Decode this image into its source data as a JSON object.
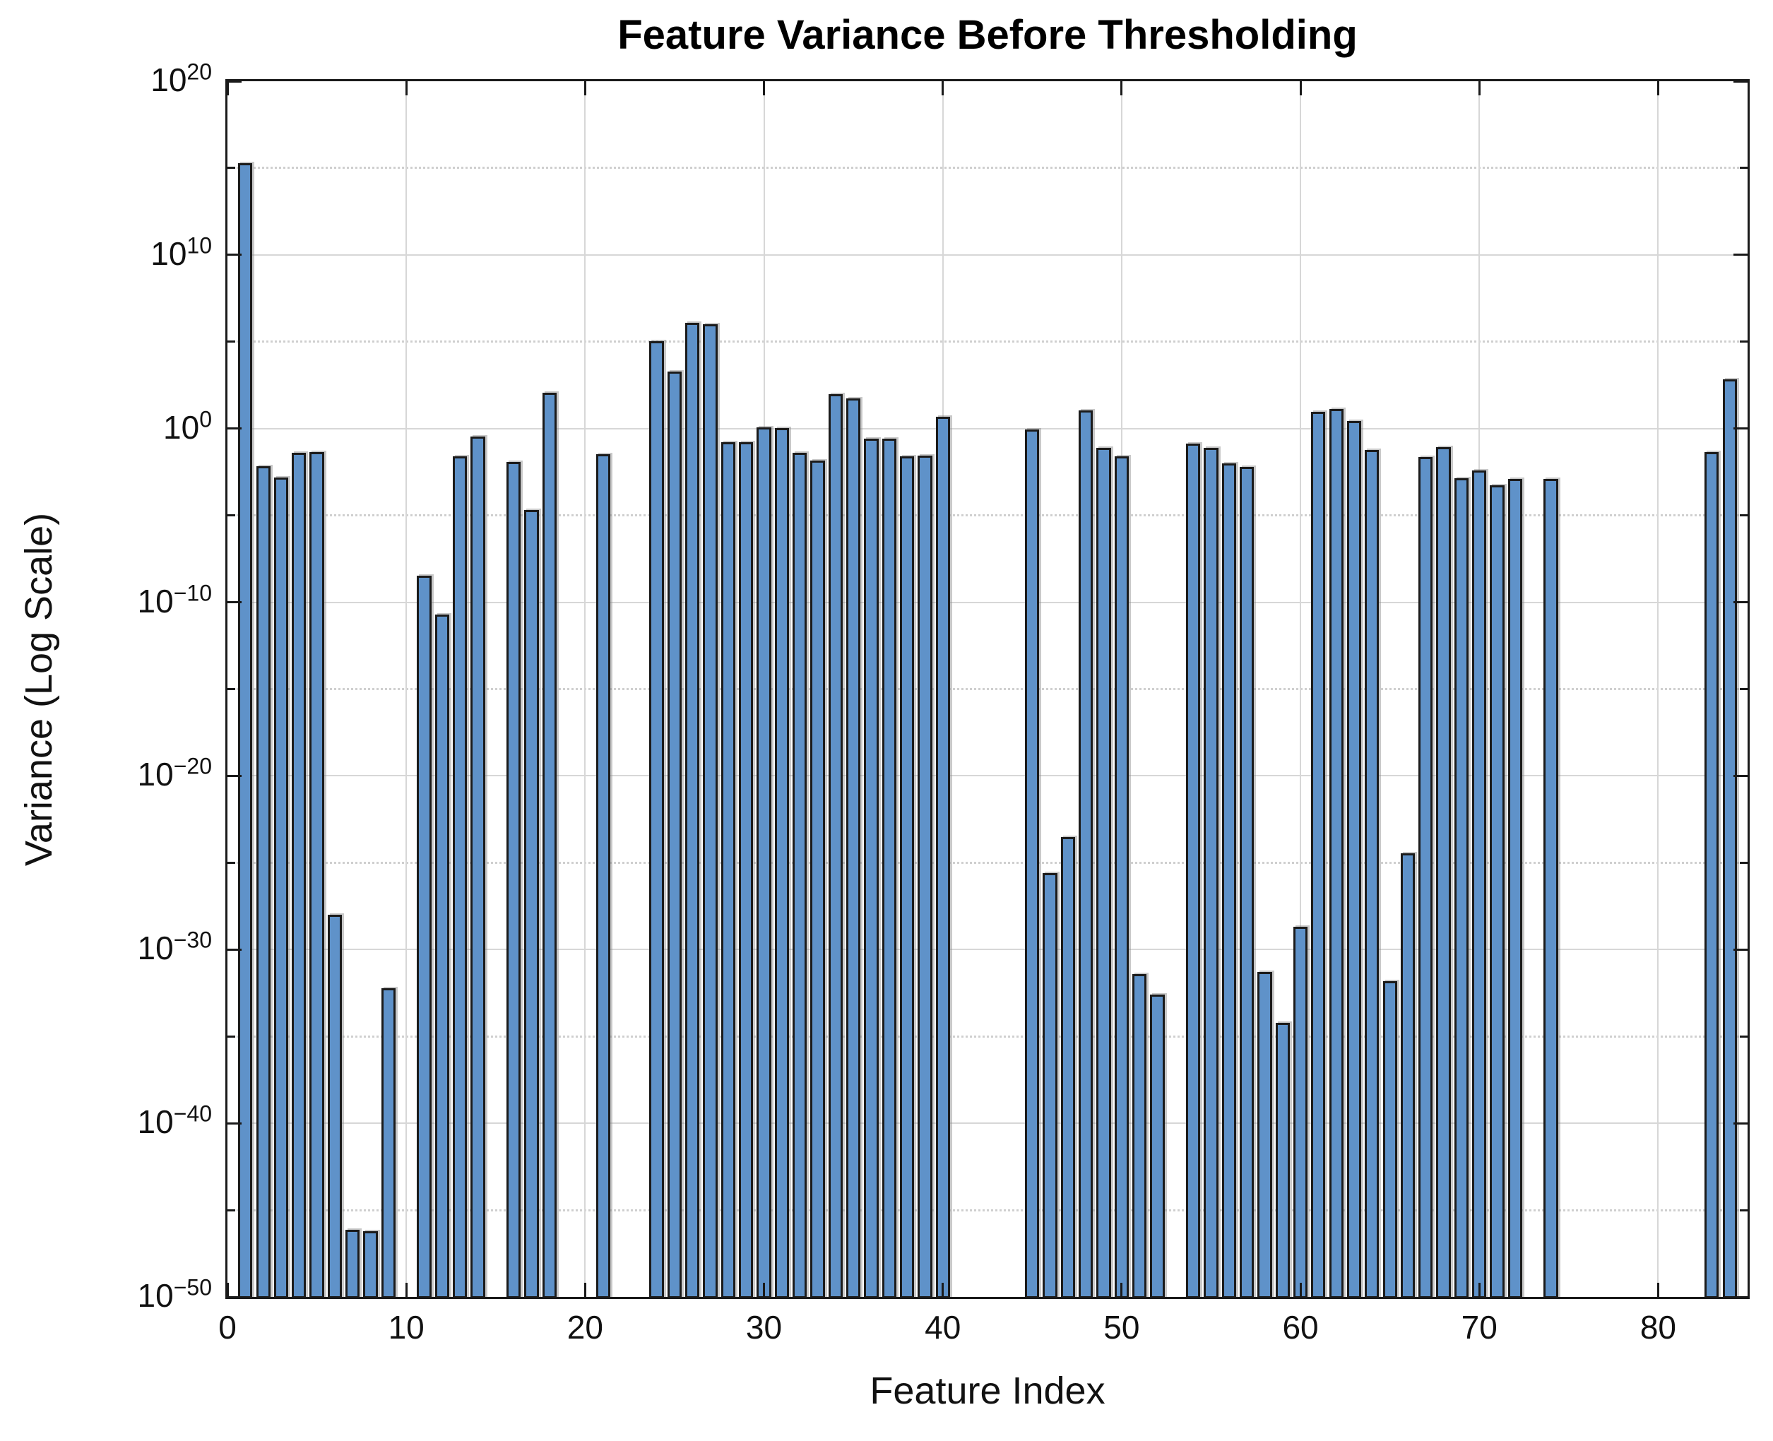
{
  "chart_data": {
    "type": "bar",
    "title": "Feature Variance Before Thresholding",
    "xlabel": "Feature Index",
    "ylabel": "Variance (Log Scale)",
    "x_start_index": 1,
    "n_features": 84,
    "xlim": [
      0,
      85
    ],
    "ylim_exponents": [
      -50,
      20
    ],
    "xticks": [
      0,
      10,
      20,
      30,
      40,
      50,
      60,
      70,
      80
    ],
    "ytick_exponents": [
      20,
      10,
      0,
      -10,
      -20,
      -30,
      -40,
      -50
    ],
    "ytick_minor_exponents": [
      15,
      5,
      -5,
      -15,
      -25,
      -35,
      -45
    ],
    "grid": {
      "major": "solid",
      "minor": "dotted",
      "vertical_at_xticks": true
    },
    "legend": null,
    "colors": {
      "bar_fill": "#5f92c9",
      "bar_edge": "#1b1b1b",
      "grid_major": "#d7d7d7",
      "grid_minor": "#cfcfcf",
      "spine": "#1a1a1a",
      "text": "#111111",
      "background": "#ffffff"
    },
    "values": [
      2000000000000000.0,
      0.007,
      0.0015,
      0.039,
      0.046,
      1e-28,
      7e-47,
      6e-47,
      6e-33,
      null,
      3.5e-09,
      2e-11,
      0.025,
      0.35,
      null,
      0.012,
      2e-05,
      120.0,
      null,
      null,
      0.035,
      null,
      null,
      110000.0,
      2000.0,
      1200000.0,
      1000000.0,
      0.17,
      0.16,
      1.15,
      1.05,
      0.04,
      0.015,
      100.0,
      54.0,
      0.27,
      0.27,
      0.025,
      0.028,
      4.6,
      null,
      null,
      null,
      null,
      0.85,
      2.5e-26,
      3e-24,
      11.0,
      0.08,
      0.026,
      4e-32,
      2.6e-33,
      null,
      0.13,
      0.08,
      0.01,
      0.006,
      5e-32,
      6e-35,
      2e-29,
      9,
      13.0,
      2.7,
      0.06,
      1.5e-32,
      3.4e-25,
      0.023,
      0.087,
      0.0014,
      0.004,
      0.00056,
      0.0013,
      null,
      0.0013,
      null,
      null,
      null,
      null,
      null,
      null,
      null,
      null,
      0.045,
      700.0
    ]
  }
}
